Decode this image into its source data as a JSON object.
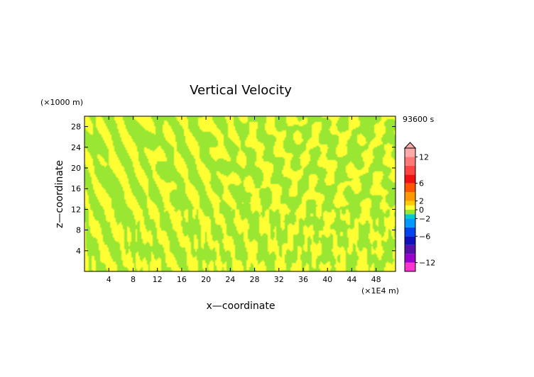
{
  "chart_data": {
    "type": "heatmap",
    "title": "Vertical Velocity",
    "xlabel": "x—coordinate",
    "ylabel": "z—coordinate",
    "x_unit": "(×1E4 m)",
    "y_unit": "(×1000 m)",
    "time_label": "93600 s",
    "xlim": [
      0,
      51.2
    ],
    "ylim": [
      0,
      30
    ],
    "x_ticks": [
      4,
      8,
      12,
      16,
      20,
      24,
      28,
      32,
      36,
      40,
      44,
      48
    ],
    "y_ticks": [
      4,
      8,
      12,
      16,
      20,
      24,
      28
    ],
    "field_pattern": "small-amplitude oscillating banded field, values between about -1 and 1",
    "colorbar": {
      "min": -14,
      "max": 14,
      "extend": "max",
      "tick_values": [
        12,
        6,
        2,
        0,
        -2,
        -6,
        -12
      ],
      "tick_labels": [
        "12",
        "6",
        "2",
        "0",
        "−2",
        "−6",
        "−12"
      ],
      "bands": [
        {
          "from": -14,
          "to": -12,
          "color": "#ff33cc"
        },
        {
          "from": -12,
          "to": -10,
          "color": "#9900cc"
        },
        {
          "from": -10,
          "to": -8,
          "color": "#5511aa"
        },
        {
          "from": -8,
          "to": -6,
          "color": "#1111bb"
        },
        {
          "from": -6,
          "to": -4,
          "color": "#0044ee"
        },
        {
          "from": -4,
          "to": -2,
          "color": "#0099ff"
        },
        {
          "from": -2,
          "to": -1,
          "color": "#00cccc"
        },
        {
          "from": -1,
          "to": 0,
          "color": "#99e633"
        },
        {
          "from": 0,
          "to": 1,
          "color": "#ffff33"
        },
        {
          "from": 1,
          "to": 2,
          "color": "#ffcc00"
        },
        {
          "from": 2,
          "to": 4,
          "color": "#ff9900"
        },
        {
          "from": 4,
          "to": 6,
          "color": "#ff5500"
        },
        {
          "from": 6,
          "to": 8,
          "color": "#ee1111"
        },
        {
          "from": 8,
          "to": 10,
          "color": "#ff4444"
        },
        {
          "from": 10,
          "to": 12,
          "color": "#ff7777"
        },
        {
          "from": 12,
          "to": 14,
          "color": "#ffaaaa"
        }
      ]
    }
  }
}
